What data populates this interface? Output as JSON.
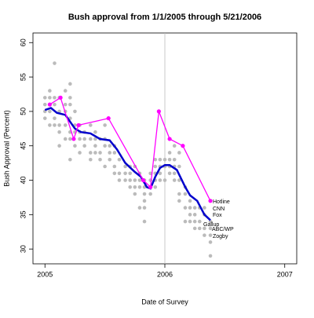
{
  "chart_data": {
    "type": "scatter",
    "title": "Bush approval from 1/1/2005 through 5/21/2006",
    "x_label": "Date of Survey",
    "y_label": "Bush Approval (Percent)",
    "xlim": [
      2004.9,
      2007.1
    ],
    "ylim": [
      27.85,
      61.4
    ],
    "xticks": [
      2005,
      2006,
      2007
    ],
    "yticks": [
      30,
      35,
      40,
      45,
      50,
      55,
      60
    ],
    "vline": 2006,
    "series": [
      {
        "color": "#bbbbbb",
        "style": "points",
        "x": [
          2005.0,
          2005.0,
          2005.0,
          2005.0,
          2005.04,
          2005.04,
          2005.04,
          2005.04,
          2005.04,
          2005.08,
          2005.08,
          2005.08,
          2005.08,
          2005.08,
          2005.12,
          2005.12,
          2005.12,
          2005.12,
          2005.12,
          2005.17,
          2005.17,
          2005.17,
          2005.17,
          2005.17,
          2005.21,
          2005.21,
          2005.21,
          2005.21,
          2005.21,
          2005.21,
          2005.21,
          2005.25,
          2005.25,
          2005.25,
          2005.25,
          2005.29,
          2005.29,
          2005.29,
          2005.29,
          2005.33,
          2005.33,
          2005.33,
          2005.38,
          2005.38,
          2005.38,
          2005.38,
          2005.42,
          2005.42,
          2005.42,
          2005.42,
          2005.46,
          2005.46,
          2005.46,
          2005.5,
          2005.5,
          2005.5,
          2005.5,
          2005.54,
          2005.54,
          2005.54,
          2005.58,
          2005.58,
          2005.58,
          2005.58,
          2005.62,
          2005.62,
          2005.62,
          2005.67,
          2005.67,
          2005.67,
          2005.71,
          2005.71,
          2005.71,
          2005.71,
          2005.75,
          2005.75,
          2005.75,
          2005.75,
          2005.79,
          2005.79,
          2005.79,
          2005.79,
          2005.83,
          2005.83,
          2005.83,
          2005.83,
          2005.83,
          2005.83,
          2005.88,
          2005.88,
          2005.88,
          2005.88,
          2005.92,
          2005.92,
          2005.92,
          2005.92,
          2005.92,
          2005.96,
          2005.96,
          2005.96,
          2005.96,
          2006.0,
          2006.0,
          2006.0,
          2006.04,
          2006.04,
          2006.04,
          2006.04,
          2006.04,
          2006.08,
          2006.08,
          2006.08,
          2006.08,
          2006.08,
          2006.12,
          2006.12,
          2006.12,
          2006.12,
          2006.12,
          2006.17,
          2006.17,
          2006.17,
          2006.17,
          2006.21,
          2006.21,
          2006.21,
          2006.21,
          2006.25,
          2006.25,
          2006.25,
          2006.25,
          2006.29,
          2006.29,
          2006.29,
          2006.33,
          2006.33,
          2006.33,
          2006.33,
          2006.38,
          2006.38,
          2006.38,
          2006.38,
          2006.38
        ],
        "values": [
          49,
          50,
          51,
          52,
          48,
          50,
          51,
          52,
          53,
          57,
          49,
          48,
          51,
          52,
          45,
          47,
          48,
          50,
          52,
          46,
          48,
          50,
          51,
          53,
          43,
          46,
          47,
          49,
          51,
          54,
          52,
          45,
          47,
          48,
          50,
          44,
          46,
          47,
          48,
          45,
          46,
          47,
          43,
          44,
          46,
          48,
          44,
          45,
          46,
          47,
          43,
          44,
          46,
          42,
          45,
          46,
          48,
          43,
          44,
          45,
          41,
          42,
          44,
          45,
          40,
          41,
          43,
          40,
          41,
          42,
          39,
          40,
          41,
          42,
          38,
          39,
          40,
          42,
          36,
          39,
          40,
          41,
          34,
          36,
          37,
          38,
          39,
          40,
          38,
          39,
          40,
          41,
          39,
          40,
          41,
          42,
          43,
          40,
          41,
          42,
          43,
          40,
          42,
          43,
          41,
          42,
          43,
          44,
          46,
          40,
          41,
          42,
          43,
          45,
          37,
          38,
          40,
          42,
          44,
          34,
          36,
          38,
          39,
          34,
          35,
          36,
          37,
          33,
          34,
          35,
          36,
          33,
          34,
          36,
          32,
          33,
          35,
          36,
          29,
          31,
          32,
          33,
          34
        ]
      },
      {
        "color": "#0000cc",
        "style": "line",
        "x": [
          2005.0,
          2005.05,
          2005.1,
          2005.17,
          2005.25,
          2005.3,
          2005.38,
          2005.46,
          2005.54,
          2005.6,
          2005.67,
          2005.75,
          2005.8,
          2005.85,
          2005.88,
          2005.92,
          2005.96,
          2006.0,
          2006.04,
          2006.1,
          2006.17,
          2006.21,
          2006.27,
          2006.33,
          2006.38
        ],
        "values": [
          50.2,
          50.5,
          49.8,
          49.5,
          47.5,
          47,
          46.8,
          46,
          45.8,
          44.5,
          42.5,
          41.2,
          40.5,
          39,
          38.8,
          40.5,
          41.8,
          42.2,
          42.2,
          41.5,
          39,
          37.8,
          37,
          35,
          34.2
        ]
      },
      {
        "color": "#ff00ff",
        "style": "line-points",
        "x": [
          2005.04,
          2005.13,
          2005.24,
          2005.28,
          2005.53,
          2005.82,
          2005.88,
          2005.95,
          2006.04,
          2006.15,
          2006.38
        ],
        "values": [
          51,
          52,
          46,
          48,
          49,
          40,
          39,
          50,
          46,
          45,
          37
        ]
      }
    ],
    "annotations": [
      "Hotline",
      "CNN",
      "Fox",
      "Gallup",
      "ABC/WP",
      "Zogby"
    ]
  }
}
